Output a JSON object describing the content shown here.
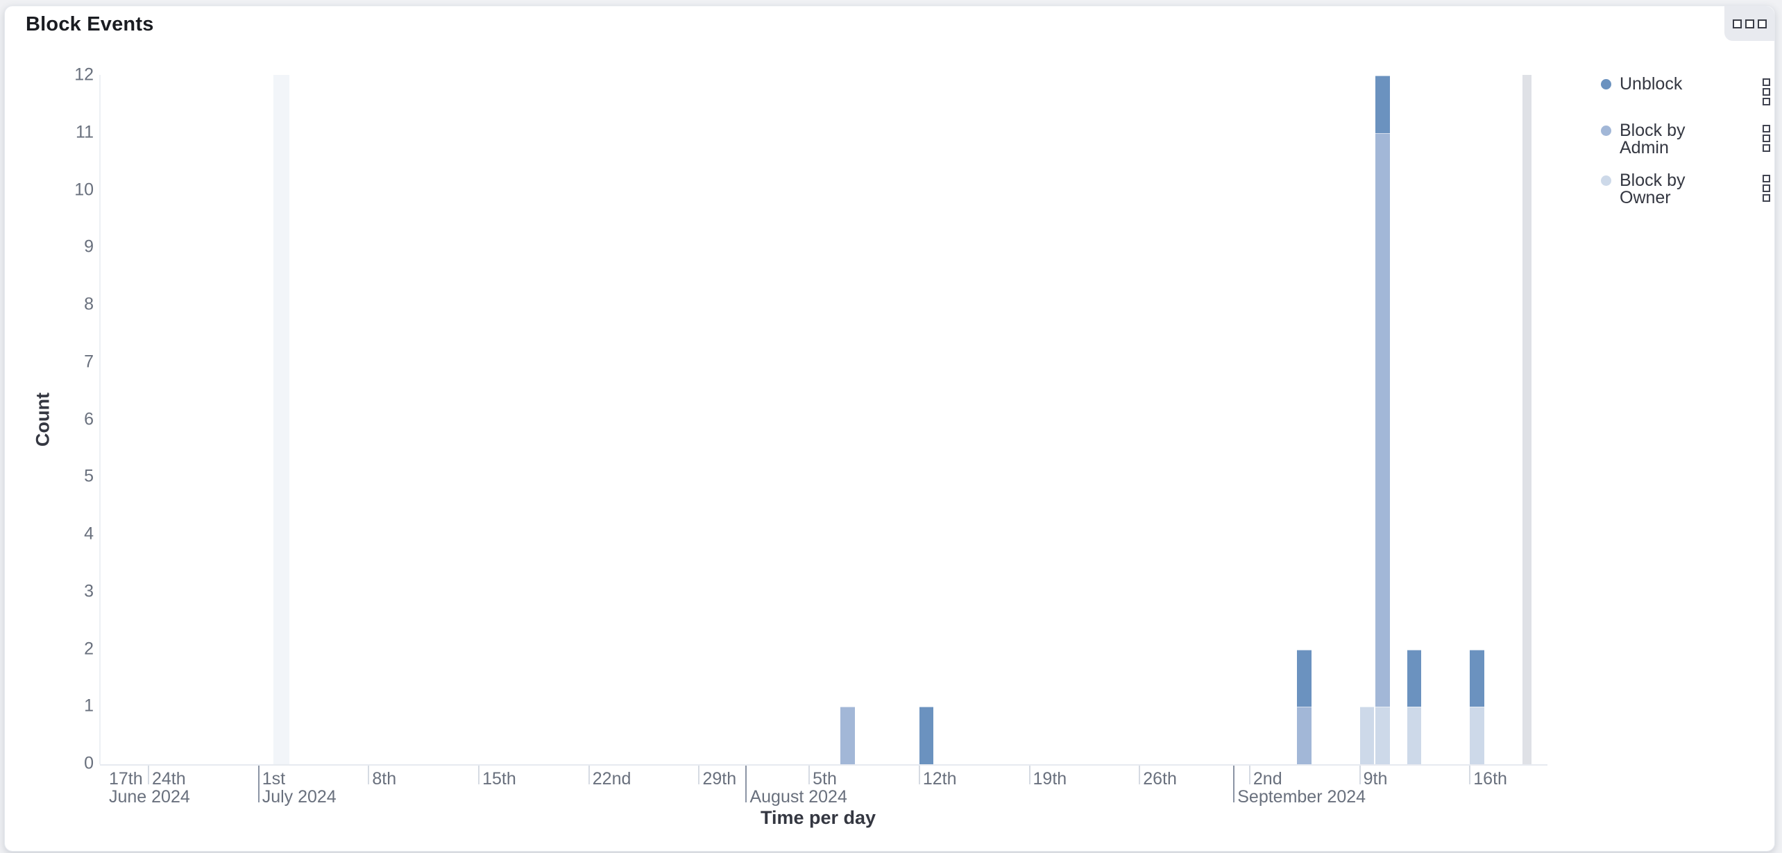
{
  "panel": {
    "title": "Block Events",
    "options_icon": "boxes-horizontal-icon"
  },
  "legend": {
    "position": "right",
    "action_icon": "boxes-vertical-icon",
    "items": [
      {
        "label": "Unblock",
        "color": "#6B92BF"
      },
      {
        "label": "Block by Admin",
        "color": "#A2B7D7"
      },
      {
        "label": "Block by Owner",
        "color": "#CDD9E9"
      }
    ]
  },
  "chart_data": {
    "type": "bar",
    "stacked": true,
    "title": "Block Events",
    "xlabel": "Time per day",
    "ylabel": "Count",
    "ylim": [
      0,
      12
    ],
    "yticks": [
      0,
      1,
      2,
      3,
      4,
      5,
      6,
      7,
      8,
      9,
      10,
      11,
      12
    ],
    "grid": false,
    "legend_position": "right",
    "series": [
      {
        "name": "Unblock",
        "color": "#6B92BF"
      },
      {
        "name": "Block by Admin",
        "color": "#A2B7D7"
      },
      {
        "name": "Block by Owner",
        "color": "#CDD9E9"
      }
    ],
    "stack_order_bottom_to_top": [
      "Block by Owner",
      "Block by Admin",
      "Unblock"
    ],
    "x_axis": {
      "unit": "day",
      "day_ticks": [
        {
          "label": "17th",
          "day": -14,
          "clamped": true,
          "tick": false
        },
        {
          "label": "24th",
          "day": -7
        },
        {
          "label": "1st",
          "day": 0
        },
        {
          "label": "8th",
          "day": 7
        },
        {
          "label": "15th",
          "day": 14
        },
        {
          "label": "22nd",
          "day": 21
        },
        {
          "label": "29th",
          "day": 28
        },
        {
          "label": "5th",
          "day": 35
        },
        {
          "label": "12th",
          "day": 42
        },
        {
          "label": "19th",
          "day": 49
        },
        {
          "label": "26th",
          "day": 56
        },
        {
          "label": "2nd",
          "day": 63
        },
        {
          "label": "9th",
          "day": 70
        },
        {
          "label": "16th",
          "day": 77
        }
      ],
      "month_ticks": [
        {
          "label": "June 2024",
          "day": -30,
          "clamped": true,
          "tick": false
        },
        {
          "label": "July 2024",
          "day": 0
        },
        {
          "label": "August 2024",
          "day": 31
        },
        {
          "label": "September 2024",
          "day": 62
        }
      ]
    },
    "bars": [
      {
        "date": "2024-08-07",
        "day": 37,
        "values": {
          "Block by Admin": 1
        }
      },
      {
        "date": "2024-08-12",
        "day": 42,
        "values": {
          "Unblock": 1
        }
      },
      {
        "date": "2024-09-05",
        "day": 66,
        "values": {
          "Block by Admin": 1,
          "Unblock": 1
        }
      },
      {
        "date": "2024-09-09",
        "day": 70,
        "values": {
          "Block by Owner": 1
        }
      },
      {
        "date": "2024-09-10",
        "day": 71,
        "values": {
          "Block by Owner": 1,
          "Block by Admin": 10,
          "Unblock": 1
        }
      },
      {
        "date": "2024-09-12",
        "day": 73,
        "values": {
          "Block by Owner": 1,
          "Unblock": 1
        }
      },
      {
        "date": "2024-09-16",
        "day": 77,
        "values": {
          "Block by Owner": 1,
          "Unblock": 1
        }
      }
    ],
    "gray_bands": [
      {
        "date": "2024-07-02",
        "day_start": 1.0,
        "day_end": 2.0,
        "color": "#F2F5F9"
      },
      {
        "date": "2024-09-19",
        "day_start": 80.4,
        "day_end": 80.97,
        "color": "#DFE1E6"
      }
    ]
  }
}
